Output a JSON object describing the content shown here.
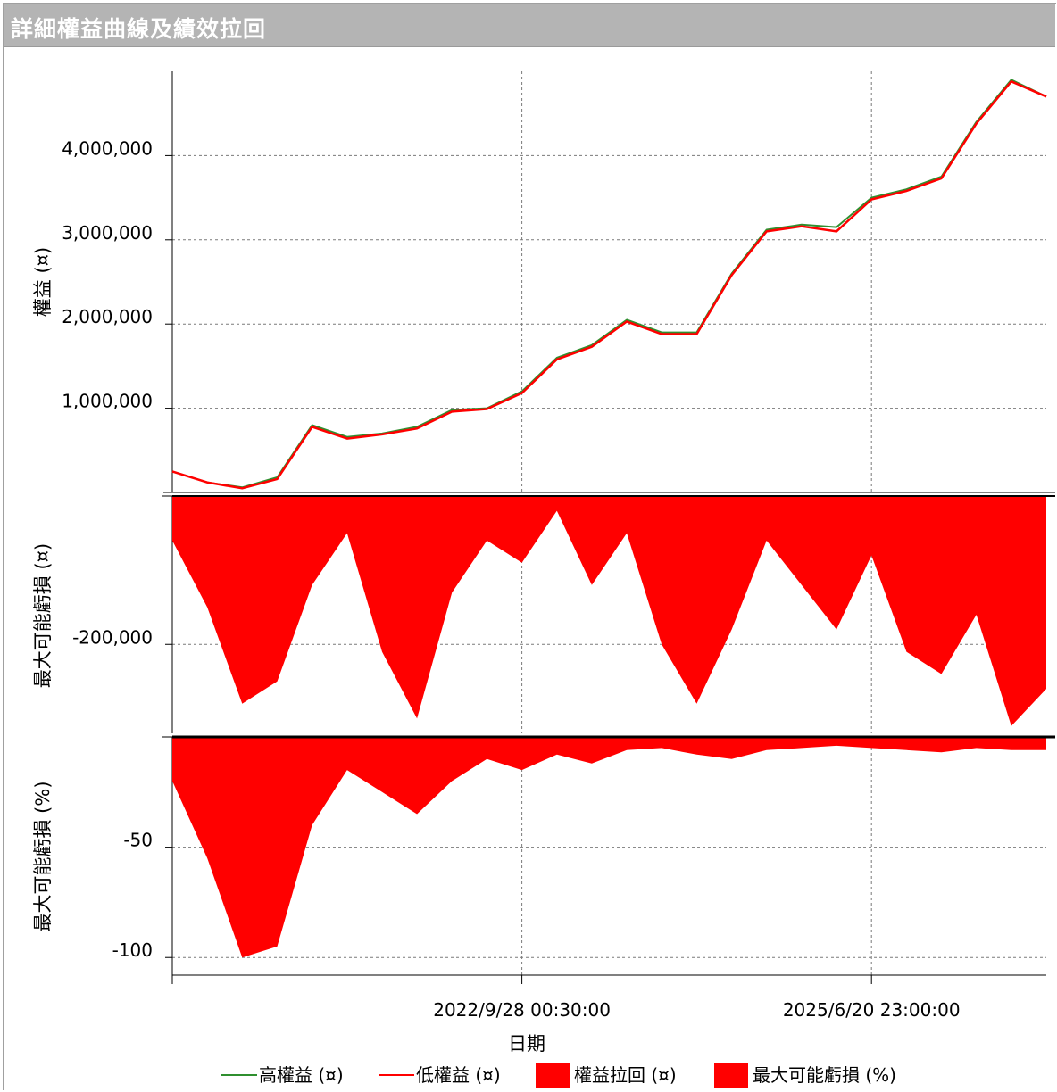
{
  "window": {
    "title": "詳細權益曲線及績效拉回"
  },
  "colors": {
    "high_equity": "#2f8f2f",
    "low_equity": "#ff0000",
    "drawdown": "#ff0000",
    "grid": "#7a7a7a"
  },
  "chart_data": [
    {
      "type": "line",
      "panel": "equity",
      "ylabel": "權益 (¤)",
      "ylim": [
        0,
        5000000
      ],
      "yticks": [
        "4,000,000",
        "3,000,000",
        "2,000,000",
        "1,000,000"
      ],
      "ytick_values": [
        4000000,
        3000000,
        2000000,
        1000000
      ],
      "grid": true,
      "series": [
        {
          "name": "高權益 (¤)",
          "values": [
            250000,
            120000,
            60000,
            180000,
            800000,
            660000,
            700000,
            780000,
            980000,
            1000000,
            1200000,
            1600000,
            1750000,
            2050000,
            1900000,
            1900000,
            2600000,
            3120000,
            3180000,
            3150000,
            3500000,
            3600000,
            3750000,
            4400000,
            4900000,
            4700000
          ]
        },
        {
          "name": "低權益 (¤)",
          "values": [
            250000,
            120000,
            50000,
            160000,
            780000,
            640000,
            690000,
            760000,
            960000,
            990000,
            1180000,
            1580000,
            1730000,
            2030000,
            1880000,
            1880000,
            2580000,
            3100000,
            3160000,
            3100000,
            3480000,
            3580000,
            3730000,
            4380000,
            4880000,
            4700000
          ]
        }
      ]
    },
    {
      "type": "area",
      "panel": "drawdown_abs",
      "ylabel": "最大可能虧損 (¤)",
      "ylim": [
        -320000,
        0
      ],
      "yticks": [
        "-200,000"
      ],
      "ytick_values": [
        -200000
      ],
      "series": [
        {
          "name": "權益拉回 (¤)",
          "values": [
            -60000,
            -150000,
            -280000,
            -250000,
            -120000,
            -50000,
            -210000,
            -300000,
            -130000,
            -60000,
            -90000,
            -20000,
            -120000,
            -50000,
            -200000,
            -280000,
            -180000,
            -60000,
            -120000,
            -180000,
            -80000,
            -210000,
            -240000,
            -160000,
            -310000,
            -260000
          ]
        }
      ]
    },
    {
      "type": "area",
      "panel": "drawdown_pct",
      "ylabel": "最大可能虧損 (%)",
      "ylim": [
        -108,
        0
      ],
      "yticks": [
        "-50",
        "-100"
      ],
      "ytick_values": [
        -50,
        -100
      ],
      "series": [
        {
          "name": "最大可能虧損 (%)",
          "values": [
            -20,
            -55,
            -100,
            -95,
            -40,
            -15,
            -25,
            -35,
            -20,
            -10,
            -15,
            -8,
            -12,
            -6,
            -5,
            -8,
            -10,
            -6,
            -5,
            -4,
            -5,
            -6,
            -7,
            -5,
            -6,
            -6
          ]
        }
      ]
    }
  ],
  "xaxis": {
    "label": "日期",
    "ticks": [
      "2022/9/28 00:30:00",
      "2025/6/20 23:00:00"
    ],
    "ticks_at_index": [
      10,
      20
    ],
    "n_points": 26
  },
  "legend": {
    "placement": "bottom",
    "items": [
      "高權益 (¤)",
      "低權益 (¤)",
      "權益拉回 (¤)",
      "最大可能虧損 (%)"
    ]
  }
}
